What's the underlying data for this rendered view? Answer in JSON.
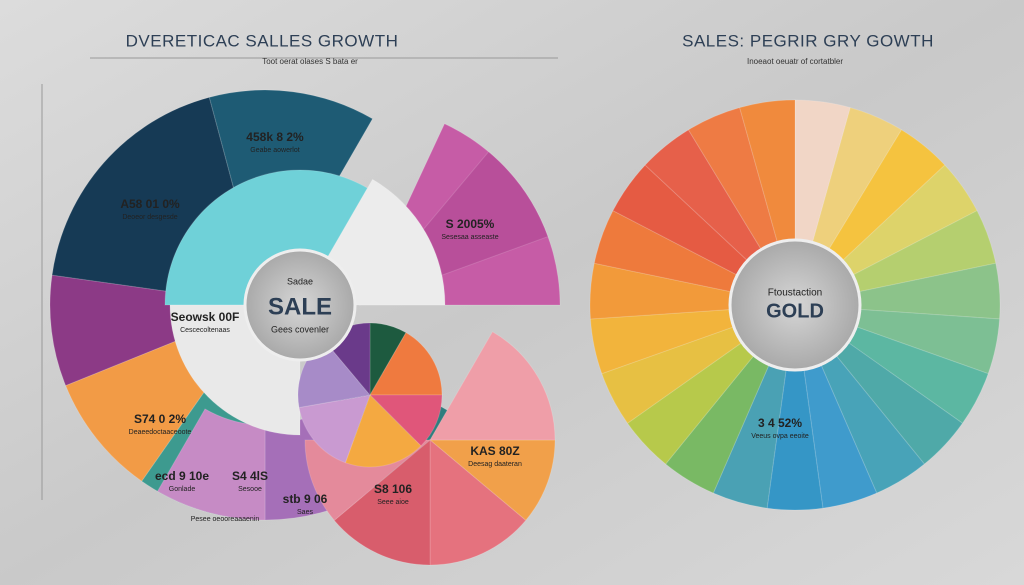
{
  "left_panel": {
    "title": "DVERETICAC SALLES GROWTH",
    "subtitle": "Toot oerat olases S bata er",
    "center": {
      "caption": "Sadae",
      "label": "SALE",
      "note": "Gees covenler"
    },
    "labels": [
      {
        "value": "458k 8 2%",
        "note": "Geabe aowerlot"
      },
      {
        "value": "A58 01 0%",
        "note": "Deoeor desgesde"
      },
      {
        "value": "S 2005%",
        "note": "Sesesaa asseaste"
      },
      {
        "value": "Seowsk 00F",
        "note": "Cescecoltenaas"
      },
      {
        "value": "S74 0 2%",
        "note": "Deaeedoctaaceoote"
      },
      {
        "value": "ecd 9 10e",
        "note": "Gonlade"
      },
      {
        "value": "S4 4lS",
        "note": "Sesooe"
      },
      {
        "value": "stb 9 06",
        "note": "Saes"
      },
      {
        "value": "KAS 80Z",
        "note": "Deesag daateran"
      },
      {
        "value": "S8 106",
        "note": "Seee aioe"
      }
    ],
    "footnote": "Pesee oeooreaaaenin"
  },
  "right_panel": {
    "title": "SALES: PEGRIR GRY GOWTH",
    "subtitle": "Inoeaot oeuatr of cortatbler",
    "center": {
      "caption": "Ftoustaction",
      "label": "GOLD"
    },
    "labels": [
      {
        "value": "3 4 52%",
        "note": "Veeus ovpa eeoite"
      }
    ]
  }
}
